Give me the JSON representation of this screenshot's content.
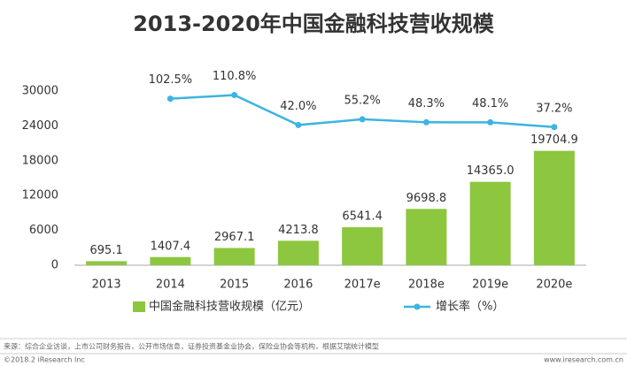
{
  "chart_data": {
    "type": "bar-line",
    "title": "2013-2020年中国金融科技营收规模",
    "categories": [
      "2013",
      "2014",
      "2015",
      "2016",
      "2017e",
      "2018e",
      "2019e",
      "2020e"
    ],
    "series": [
      {
        "name": "中国金融科技营收规模（亿元）",
        "type": "bar",
        "color": "#8dc63f",
        "values": [
          695.1,
          1407.4,
          2967.1,
          4213.8,
          6541.4,
          9698.8,
          14365.0,
          19704.9
        ],
        "value_labels": [
          "695.1",
          "1407.4",
          "2967.1",
          "4213.8",
          "6541.4",
          "9698.8",
          "14365.0",
          "19704.9"
        ]
      },
      {
        "name": "增长率（%）",
        "type": "line",
        "axis": "y2",
        "color": "#3cb4e0",
        "values": [
          null,
          102.5,
          110.8,
          42.0,
          55.2,
          48.3,
          48.1,
          37.2
        ],
        "value_labels": [
          null,
          "102.5%",
          "110.8%",
          "42.0%",
          "55.2%",
          "48.3%",
          "48.1%",
          "37.2%"
        ]
      }
    ],
    "ylim": [
      0,
      30000
    ],
    "yticks": [
      0,
      6000,
      12000,
      18000,
      24000,
      30000
    ],
    "y2lim": [
      -280,
      120
    ],
    "grid": false,
    "legend": "bottom",
    "source": "来源：综合企业访谈，上市公司财务报告，公开市场信息，证券投资基金业协会，保险业协会等机构，根据艾瑞统计模型",
    "copyright": "©2018.2 iResearch Inc",
    "website": "www.iresearch.com.cn"
  }
}
